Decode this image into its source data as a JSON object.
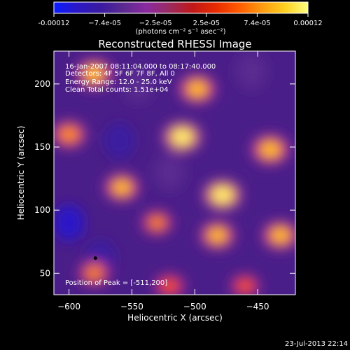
{
  "colorbar": {
    "ticks": [
      "-0.00012",
      "−7.4e-05",
      "−2.5e-05",
      "2.5e-05",
      "7.4e-05",
      "0.00012"
    ],
    "unit": "(photons cm⁻² s⁻¹ asec⁻²)",
    "colors": [
      "#0a1cff",
      "#2a18c8",
      "#3a1aa0",
      "#5a2a90",
      "#8a2aa0",
      "#9b2a60",
      "#c01818",
      "#e82a00",
      "#ff5a00",
      "#ff9a10",
      "#ffd020",
      "#ffff80"
    ]
  },
  "chart_data": {
    "type": "heatmap",
    "title": "Reconstructed RHESSI Image",
    "xlabel": "Heliocentric X (arcsec)",
    "ylabel": "Heliocentric Y (arcsec)",
    "xlim": [
      -612,
      -420
    ],
    "ylim": [
      33,
      226
    ],
    "xticks": [
      -600,
      -550,
      -500,
      -450
    ],
    "yticks": [
      50,
      100,
      150,
      200
    ],
    "colorbar_range": [
      -0.00012,
      0.00012
    ],
    "peak_position": [
      -511,
      200
    ],
    "min_marker": [
      -579,
      62
    ],
    "bright_sources": [
      {
        "x": -510,
        "y": 158,
        "level": 0.95
      },
      {
        "x": -498,
        "y": 196,
        "level": 0.85
      },
      {
        "x": -478,
        "y": 112,
        "level": 0.95
      },
      {
        "x": -482,
        "y": 80,
        "level": 0.75
      },
      {
        "x": -440,
        "y": 148,
        "level": 0.9
      },
      {
        "x": -432,
        "y": 80,
        "level": 0.8
      },
      {
        "x": -580,
        "y": 208,
        "level": 0.85
      },
      {
        "x": -600,
        "y": 160,
        "level": 0.7
      },
      {
        "x": -558,
        "y": 118,
        "level": 0.75
      },
      {
        "x": -530,
        "y": 90,
        "level": 0.55
      },
      {
        "x": -580,
        "y": 50,
        "level": 0.6
      },
      {
        "x": -520,
        "y": 40,
        "level": 0.5
      },
      {
        "x": -460,
        "y": 40,
        "level": 0.45
      }
    ],
    "dim_regions": [
      {
        "x": -600,
        "y": 90,
        "level": -0.85
      },
      {
        "x": -575,
        "y": 62,
        "level": -0.7
      },
      {
        "x": -560,
        "y": 155,
        "level": -0.55
      },
      {
        "x": -520,
        "y": 130,
        "level": -0.5
      },
      {
        "x": -455,
        "y": 210,
        "level": -0.5
      },
      {
        "x": -545,
        "y": 200,
        "level": -0.5
      }
    ]
  },
  "annotations": {
    "time_range": "16-Jan-2007 08:11:04.000 to 08:17:40.000",
    "detectors": "Detectors: 4F 5F 6F 7F 8F, All 0",
    "energy": "Energy Range: 12.0 - 25.0 keV",
    "clean": "Clean    Total counts: 1.51e+04",
    "peak": "Position of Peak = [-511,200]"
  },
  "footer": {
    "date": "23-Jul-2013 22:14"
  }
}
